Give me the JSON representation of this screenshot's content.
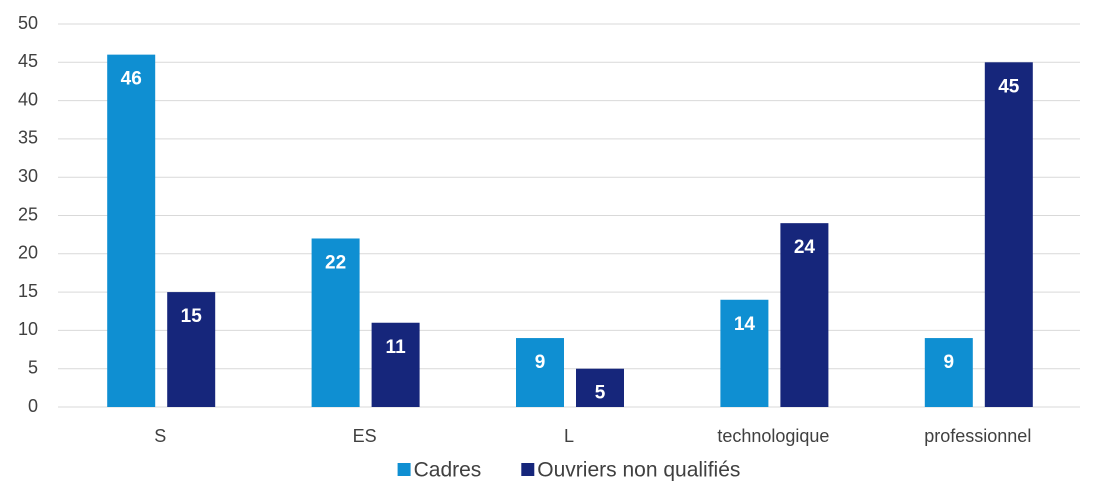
{
  "chart_data": {
    "type": "bar",
    "categories": [
      "S",
      "ES",
      "L",
      "technologique",
      "professionnel"
    ],
    "series": [
      {
        "name": "Cadres",
        "color": "#0f8fd2",
        "values": [
          46,
          22,
          9,
          14,
          9
        ]
      },
      {
        "name": "Ouvriers non qualifiés",
        "color": "#16267b",
        "values": [
          15,
          11,
          5,
          24,
          45
        ]
      }
    ],
    "ylim": [
      0,
      50
    ],
    "yticks": [
      0,
      5,
      10,
      15,
      20,
      25,
      30,
      35,
      40,
      45,
      50
    ],
    "grid": true,
    "legend": "bottom"
  }
}
